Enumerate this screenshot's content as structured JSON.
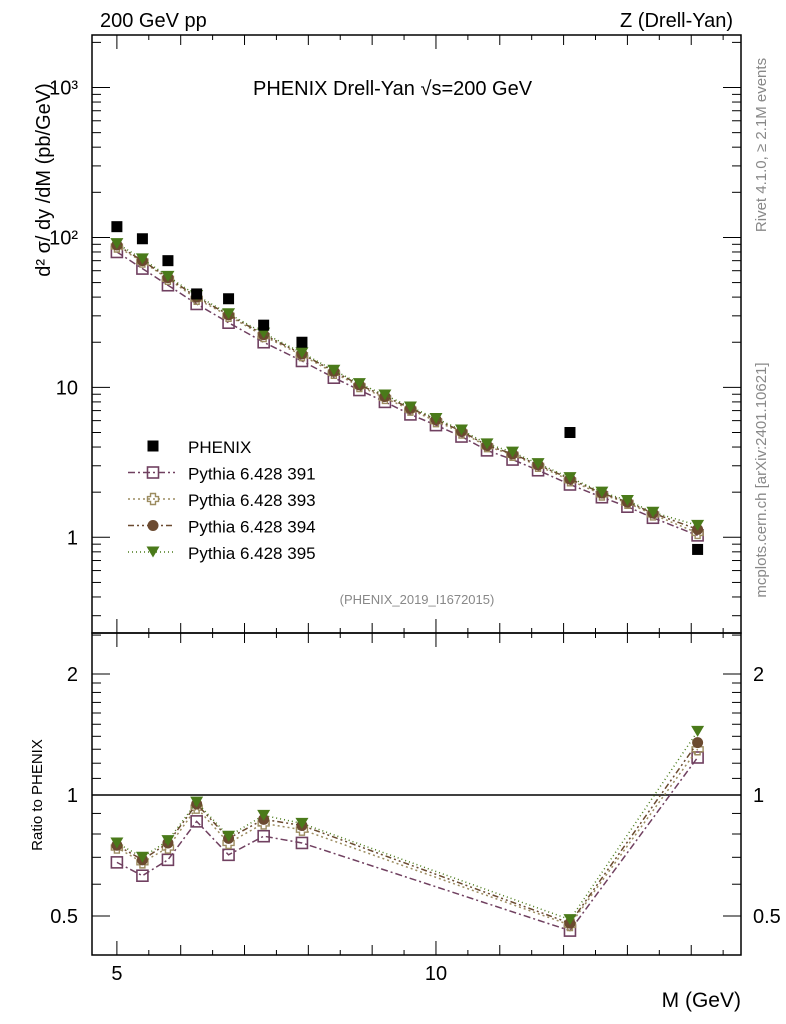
{
  "header": {
    "left": "200 GeV pp",
    "right": "Z (Drell-Yan)",
    "title_prefix": "PHENIX Drell-Yan ",
    "title_suffix": "s=200 GeV",
    "sqrt_symbol": "√",
    "analysis_id": "(PHENIX_2019_I1672015)"
  },
  "side": {
    "rivet": "Rivet 4.1.0, ≥ 2.1M events",
    "mcplots": "mcplots.cern.ch [arXiv:2401.10621]"
  },
  "chart_data": {
    "type": "scatter",
    "title": "PHENIX Drell-Yan √s=200 GeV",
    "xlabel": "M (GeV)",
    "ylabel": "d² σ/ dy /dM (pb/GeV)",
    "ratio_ylabel": "Ratio to PHENIX",
    "xlim": [
      4.61,
      14.78
    ],
    "ylim": [
      0.23,
      2240
    ],
    "ylog": true,
    "ratio_ylim": [
      0.4,
      2.53
    ],
    "ratio_log": true,
    "x_ticks": [
      {
        "v": 5,
        "label": "5"
      },
      {
        "v": 10,
        "label": "10"
      }
    ],
    "y_ticks": [
      {
        "v": 1000,
        "label": "10³"
      },
      {
        "v": 100,
        "label": "10²"
      },
      {
        "v": 10,
        "label": "10"
      },
      {
        "v": 1,
        "label": "1"
      }
    ],
    "ratio_ticks": [
      {
        "v": 2,
        "label": "2"
      },
      {
        "v": 1,
        "label": "1"
      },
      {
        "v": 0.5,
        "label": "0.5"
      }
    ],
    "legend_position": "lower-left",
    "data": {
      "name": "PHENIX",
      "color": "#000000",
      "x": [
        5.0,
        5.4,
        5.8,
        6.25,
        6.75,
        7.3,
        7.9,
        12.1,
        14.1
      ],
      "y": [
        118,
        98,
        70,
        42,
        39,
        26,
        20,
        5.0,
        0.83
      ]
    },
    "mc_x": [
      5.0,
      5.4,
      5.8,
      6.25,
      6.75,
      7.3,
      7.9,
      8.4,
      8.8,
      9.2,
      9.6,
      10.0,
      10.4,
      10.8,
      11.2,
      11.6,
      12.1,
      12.6,
      13.0,
      13.4,
      14.1
    ],
    "series": [
      {
        "name": "Pythia 6.428 391",
        "color": "#704060",
        "marker": "open-square",
        "dash": "7,3,2,3",
        "y": [
          80,
          62,
          48,
          36,
          27,
          20,
          15,
          11.6,
          9.6,
          8.0,
          6.6,
          5.6,
          4.7,
          3.8,
          3.3,
          2.8,
          2.25,
          1.85,
          1.6,
          1.35,
          1.03
        ],
        "ratio": [
          0.68,
          0.63,
          0.69,
          0.86,
          0.71,
          0.79,
          0.76,
          0.46,
          1.24
        ]
      },
      {
        "name": "Pythia 6.428 393",
        "color": "#9c8c60",
        "marker": "open-cross",
        "dash": "2,3",
        "y": [
          87,
          69,
          53,
          39,
          30,
          22,
          16.4,
          12.5,
          10.2,
          8.5,
          7.1,
          5.95,
          5.0,
          4.05,
          3.55,
          3.0,
          2.4,
          1.93,
          1.7,
          1.42,
          1.07
        ],
        "ratio": [
          0.74,
          0.68,
          0.74,
          0.93,
          0.76,
          0.85,
          0.82,
          0.475,
          1.3
        ]
      },
      {
        "name": "Pythia 6.428 394",
        "color": "#6b4a30",
        "marker": "filled-circle",
        "dash": "6,3,2,3,2,3",
        "y": [
          89,
          70,
          54,
          40,
          30.5,
          22.5,
          16.7,
          12.8,
          10.4,
          8.7,
          7.25,
          6.1,
          5.1,
          4.1,
          3.6,
          3.05,
          2.45,
          1.97,
          1.72,
          1.45,
          1.13
        ],
        "ratio": [
          0.75,
          0.69,
          0.76,
          0.95,
          0.78,
          0.87,
          0.84,
          0.48,
          1.35
        ]
      },
      {
        "name": "Pythia 6.428 395",
        "color": "#4a7a1a",
        "marker": "filled-triangle-down",
        "dash": "1,3",
        "y": [
          91,
          72,
          55,
          41,
          31,
          23,
          17,
          13,
          10.6,
          8.9,
          7.4,
          6.2,
          5.2,
          4.2,
          3.7,
          3.1,
          2.5,
          2.0,
          1.76,
          1.47,
          1.2
        ],
        "ratio": [
          0.76,
          0.7,
          0.77,
          0.96,
          0.79,
          0.89,
          0.85,
          0.49,
          1.44
        ]
      }
    ]
  }
}
